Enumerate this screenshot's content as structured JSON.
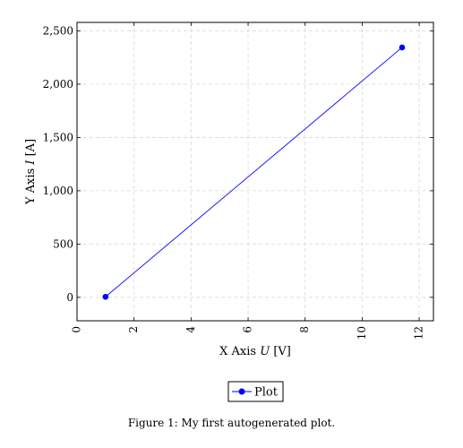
{
  "chart_data": {
    "type": "line",
    "title": "",
    "xlabel": "X Axis U [V]",
    "xlabel_parts": [
      "X Axis ",
      "U",
      " [V]"
    ],
    "ylabel": "Y Axis I [A]",
    "ylabel_parts": [
      "Y Axis ",
      "I",
      " [A]"
    ],
    "xlim": [
      0,
      12.5
    ],
    "ylim": [
      -220,
      2580
    ],
    "xticks": [
      0,
      2,
      4,
      6,
      8,
      10,
      12
    ],
    "xtick_labels": [
      "0",
      "2",
      "4",
      "6",
      "8",
      "10",
      "12"
    ],
    "yticks": [
      0,
      500,
      1000,
      1500,
      2000,
      2500
    ],
    "ytick_labels": [
      "0",
      "500",
      "1,000",
      "1,500",
      "2,000",
      "2,500"
    ],
    "grid": true,
    "legend_placement": "bottom-center",
    "series": [
      {
        "name": "Plot",
        "color": "#0000ff",
        "marker": "circle",
        "x": [
          1,
          11.4
        ],
        "y": [
          5,
          2345
        ]
      }
    ]
  },
  "caption": "Figure 1: My first autogenerated plot."
}
